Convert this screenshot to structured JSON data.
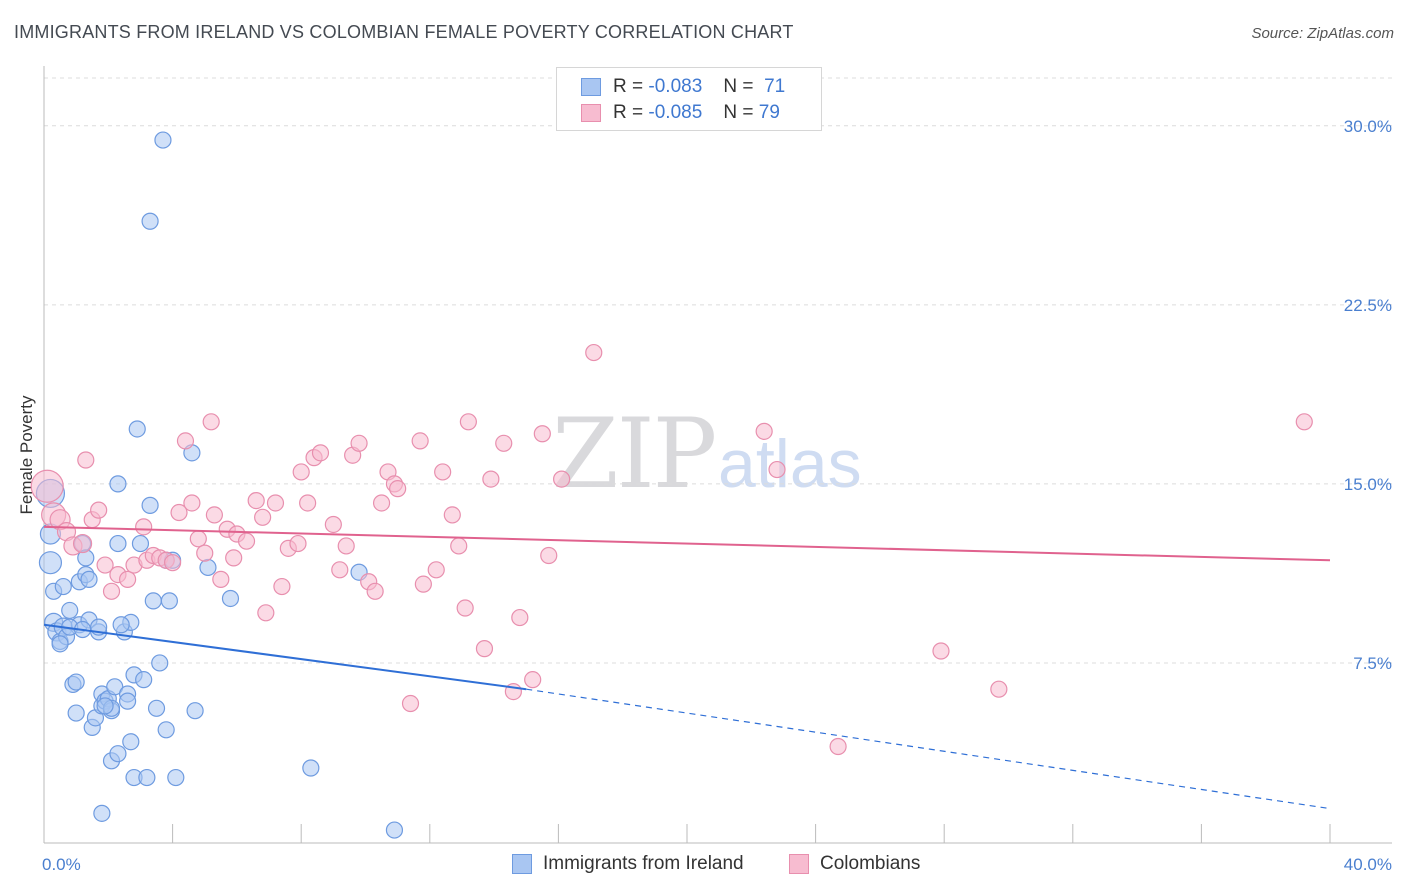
{
  "header": {
    "title": "IMMIGRANTS FROM IRELAND VS COLOMBIAN FEMALE POVERTY CORRELATION CHART",
    "source": "Source: ZipAtlas.com"
  },
  "watermark": {
    "zip": "ZIP",
    "atlas": "atlas"
  },
  "legend": {
    "rows": [
      {
        "r_label": "R =",
        "r_value": "-0.083",
        "n_label": "N =",
        "n_value": "71",
        "color": "#a9c6f2",
        "border": "#6e9be0"
      },
      {
        "r_label": "R =",
        "r_value": "-0.085",
        "n_label": "N =",
        "n_value": "79",
        "color": "#f7bcd0",
        "border": "#e88fae"
      }
    ]
  },
  "bottom_legend": [
    {
      "label": "Immigrants from Ireland",
      "color": "#a9c6f2",
      "border": "#6e9be0"
    },
    {
      "label": "Colombians",
      "color": "#f7bcd0",
      "border": "#e88fae"
    }
  ],
  "chart_data": {
    "type": "scatter",
    "title": "IMMIGRANTS FROM IRELAND VS COLOMBIAN FEMALE POVERTY CORRELATION CHART",
    "xlabel": "",
    "ylabel": "Female Poverty",
    "xlim": [
      0,
      40
    ],
    "ylim": [
      0,
      32
    ],
    "x_tick_labels": [
      {
        "value": 0,
        "label": "0.0%"
      },
      {
        "value": 40,
        "label": "40.0%"
      }
    ],
    "y_tick_labels": [
      {
        "value": 7.5,
        "label": "7.5%"
      },
      {
        "value": 15,
        "label": "15.0%"
      },
      {
        "value": 22.5,
        "label": "22.5%"
      },
      {
        "value": 30,
        "label": "30.0%"
      }
    ],
    "x_minor_ticks": [
      0,
      4,
      8,
      12,
      16,
      20,
      24,
      28,
      32,
      36,
      40
    ],
    "grid": true,
    "series": [
      {
        "name": "Immigrants from Ireland",
        "color": "#6e9be0",
        "fill": "#a9c6f2",
        "trend": {
          "x1": 0,
          "y1": 9.1,
          "x2": 15,
          "y2": 6.4,
          "dash_x2": 40,
          "dash_y2": 1.4,
          "color": "#2f6fd6"
        },
        "points": [
          [
            0.2,
            14.6,
            14
          ],
          [
            0.2,
            12.9,
            10
          ],
          [
            0.2,
            11.7,
            11
          ],
          [
            0.3,
            10.5,
            8
          ],
          [
            0.3,
            9.2,
            9
          ],
          [
            0.4,
            8.8,
            9
          ],
          [
            0.5,
            8.4,
            8
          ],
          [
            0.6,
            9.0,
            9
          ],
          [
            0.6,
            10.7,
            8
          ],
          [
            0.7,
            8.6,
            8
          ],
          [
            0.8,
            9.7,
            8
          ],
          [
            0.9,
            6.6,
            8
          ],
          [
            1.0,
            6.7,
            8
          ],
          [
            1.0,
            5.4,
            8
          ],
          [
            1.1,
            9.1,
            8
          ],
          [
            1.1,
            10.9,
            8
          ],
          [
            1.2,
            12.5,
            8
          ],
          [
            1.3,
            11.9,
            8
          ],
          [
            1.3,
            11.2,
            8
          ],
          [
            1.4,
            9.3,
            8
          ],
          [
            1.4,
            11.0,
            8
          ],
          [
            1.5,
            4.8,
            8
          ],
          [
            1.6,
            5.2,
            8
          ],
          [
            1.7,
            8.8,
            8
          ],
          [
            1.7,
            9.0,
            8
          ],
          [
            1.8,
            1.2,
            8
          ],
          [
            1.8,
            5.7,
            8
          ],
          [
            1.8,
            6.2,
            8
          ],
          [
            1.9,
            5.9,
            8
          ],
          [
            2.0,
            6.0,
            8
          ],
          [
            2.1,
            5.5,
            8
          ],
          [
            2.1,
            5.6,
            8
          ],
          [
            2.1,
            3.4,
            8
          ],
          [
            2.2,
            6.5,
            8
          ],
          [
            2.3,
            3.7,
            8
          ],
          [
            2.3,
            12.5,
            8
          ],
          [
            2.3,
            15.0,
            8
          ],
          [
            2.5,
            8.8,
            8
          ],
          [
            2.6,
            6.2,
            8
          ],
          [
            2.6,
            5.9,
            8
          ],
          [
            2.7,
            4.2,
            8
          ],
          [
            2.7,
            9.2,
            8
          ],
          [
            2.8,
            2.7,
            8
          ],
          [
            2.8,
            7.0,
            8
          ],
          [
            2.9,
            17.3,
            8
          ],
          [
            3.0,
            12.5,
            8
          ],
          [
            3.1,
            6.8,
            8
          ],
          [
            3.2,
            2.7,
            8
          ],
          [
            3.3,
            26.0,
            8
          ],
          [
            3.3,
            14.1,
            8
          ],
          [
            3.4,
            10.1,
            8
          ],
          [
            3.5,
            5.6,
            8
          ],
          [
            3.6,
            7.5,
            8
          ],
          [
            3.7,
            29.4,
            8
          ],
          [
            3.8,
            11.8,
            8
          ],
          [
            3.8,
            4.7,
            8
          ],
          [
            3.9,
            10.1,
            8
          ],
          [
            4.0,
            11.8,
            8
          ],
          [
            4.1,
            2.7,
            8
          ],
          [
            4.6,
            16.3,
            8
          ],
          [
            4.7,
            5.5,
            8
          ],
          [
            5.1,
            11.5,
            8
          ],
          [
            5.8,
            10.2,
            8
          ],
          [
            8.3,
            3.1,
            8
          ],
          [
            9.8,
            11.3,
            8
          ],
          [
            10.9,
            0.5,
            8
          ],
          [
            0.8,
            9.0,
            8
          ],
          [
            1.2,
            8.9,
            8
          ],
          [
            2.4,
            9.1,
            8
          ],
          [
            0.5,
            8.3,
            8
          ],
          [
            1.9,
            5.7,
            8
          ]
        ]
      },
      {
        "name": "Colombians",
        "color": "#e88fae",
        "fill": "#f7bcd0",
        "trend": {
          "x1": 0,
          "y1": 13.2,
          "x2": 40,
          "y2": 11.8,
          "color": "#e0628e"
        },
        "points": [
          [
            0.1,
            14.9,
            16
          ],
          [
            0.3,
            13.7,
            12
          ],
          [
            0.5,
            13.5,
            10
          ],
          [
            0.7,
            13.0,
            9
          ],
          [
            0.9,
            12.4,
            9
          ],
          [
            1.2,
            12.5,
            9
          ],
          [
            1.3,
            16.0,
            8
          ],
          [
            1.5,
            13.5,
            8
          ],
          [
            1.7,
            13.9,
            8
          ],
          [
            1.9,
            11.6,
            8
          ],
          [
            2.1,
            10.5,
            8
          ],
          [
            2.3,
            11.2,
            8
          ],
          [
            2.6,
            11.0,
            8
          ],
          [
            2.8,
            11.6,
            8
          ],
          [
            3.1,
            13.2,
            8
          ],
          [
            3.2,
            11.8,
            8
          ],
          [
            3.4,
            12.0,
            8
          ],
          [
            3.6,
            11.9,
            8
          ],
          [
            3.8,
            11.8,
            8
          ],
          [
            4.0,
            11.7,
            8
          ],
          [
            4.2,
            13.8,
            8
          ],
          [
            4.4,
            16.8,
            8
          ],
          [
            4.6,
            14.2,
            8
          ],
          [
            4.8,
            12.7,
            8
          ],
          [
            5.0,
            12.1,
            8
          ],
          [
            5.2,
            17.6,
            8
          ],
          [
            5.3,
            13.7,
            8
          ],
          [
            5.5,
            11.0,
            8
          ],
          [
            5.7,
            13.1,
            8
          ],
          [
            5.9,
            11.9,
            8
          ],
          [
            6.0,
            12.9,
            8
          ],
          [
            6.3,
            12.6,
            8
          ],
          [
            6.6,
            14.3,
            8
          ],
          [
            6.8,
            13.6,
            8
          ],
          [
            6.9,
            9.6,
            8
          ],
          [
            7.2,
            14.2,
            8
          ],
          [
            7.4,
            10.7,
            8
          ],
          [
            7.6,
            12.3,
            8
          ],
          [
            7.9,
            12.5,
            8
          ],
          [
            8.0,
            15.5,
            8
          ],
          [
            8.2,
            14.2,
            8
          ],
          [
            8.4,
            16.1,
            8
          ],
          [
            8.6,
            16.3,
            8
          ],
          [
            9.0,
            13.3,
            8
          ],
          [
            9.2,
            11.4,
            8
          ],
          [
            9.4,
            12.4,
            8
          ],
          [
            9.6,
            16.2,
            8
          ],
          [
            9.8,
            16.7,
            8
          ],
          [
            10.1,
            10.9,
            8
          ],
          [
            10.3,
            10.5,
            8
          ],
          [
            10.5,
            14.2,
            8
          ],
          [
            10.7,
            15.5,
            8
          ],
          [
            10.9,
            15.0,
            8
          ],
          [
            11.0,
            14.8,
            8
          ],
          [
            11.4,
            5.8,
            8
          ],
          [
            11.7,
            16.8,
            8
          ],
          [
            11.8,
            10.8,
            8
          ],
          [
            12.2,
            11.4,
            8
          ],
          [
            12.4,
            15.5,
            8
          ],
          [
            12.7,
            13.7,
            8
          ],
          [
            12.9,
            12.4,
            8
          ],
          [
            13.1,
            9.8,
            8
          ],
          [
            13.2,
            17.6,
            8
          ],
          [
            13.7,
            8.1,
            8
          ],
          [
            13.9,
            15.2,
            8
          ],
          [
            14.3,
            16.7,
            8
          ],
          [
            14.6,
            6.3,
            8
          ],
          [
            14.8,
            9.4,
            8
          ],
          [
            15.2,
            6.8,
            8
          ],
          [
            15.5,
            17.1,
            8
          ],
          [
            15.7,
            12.0,
            8
          ],
          [
            16.1,
            15.2,
            8
          ],
          [
            17.1,
            20.5,
            8
          ],
          [
            22.4,
            17.2,
            8
          ],
          [
            22.8,
            15.6,
            8
          ],
          [
            24.7,
            4.0,
            8
          ],
          [
            27.9,
            8.0,
            8
          ],
          [
            29.7,
            6.4,
            8
          ],
          [
            39.2,
            17.6,
            8
          ]
        ]
      }
    ]
  },
  "axes": {
    "y_axis_label": "Female Poverty"
  }
}
